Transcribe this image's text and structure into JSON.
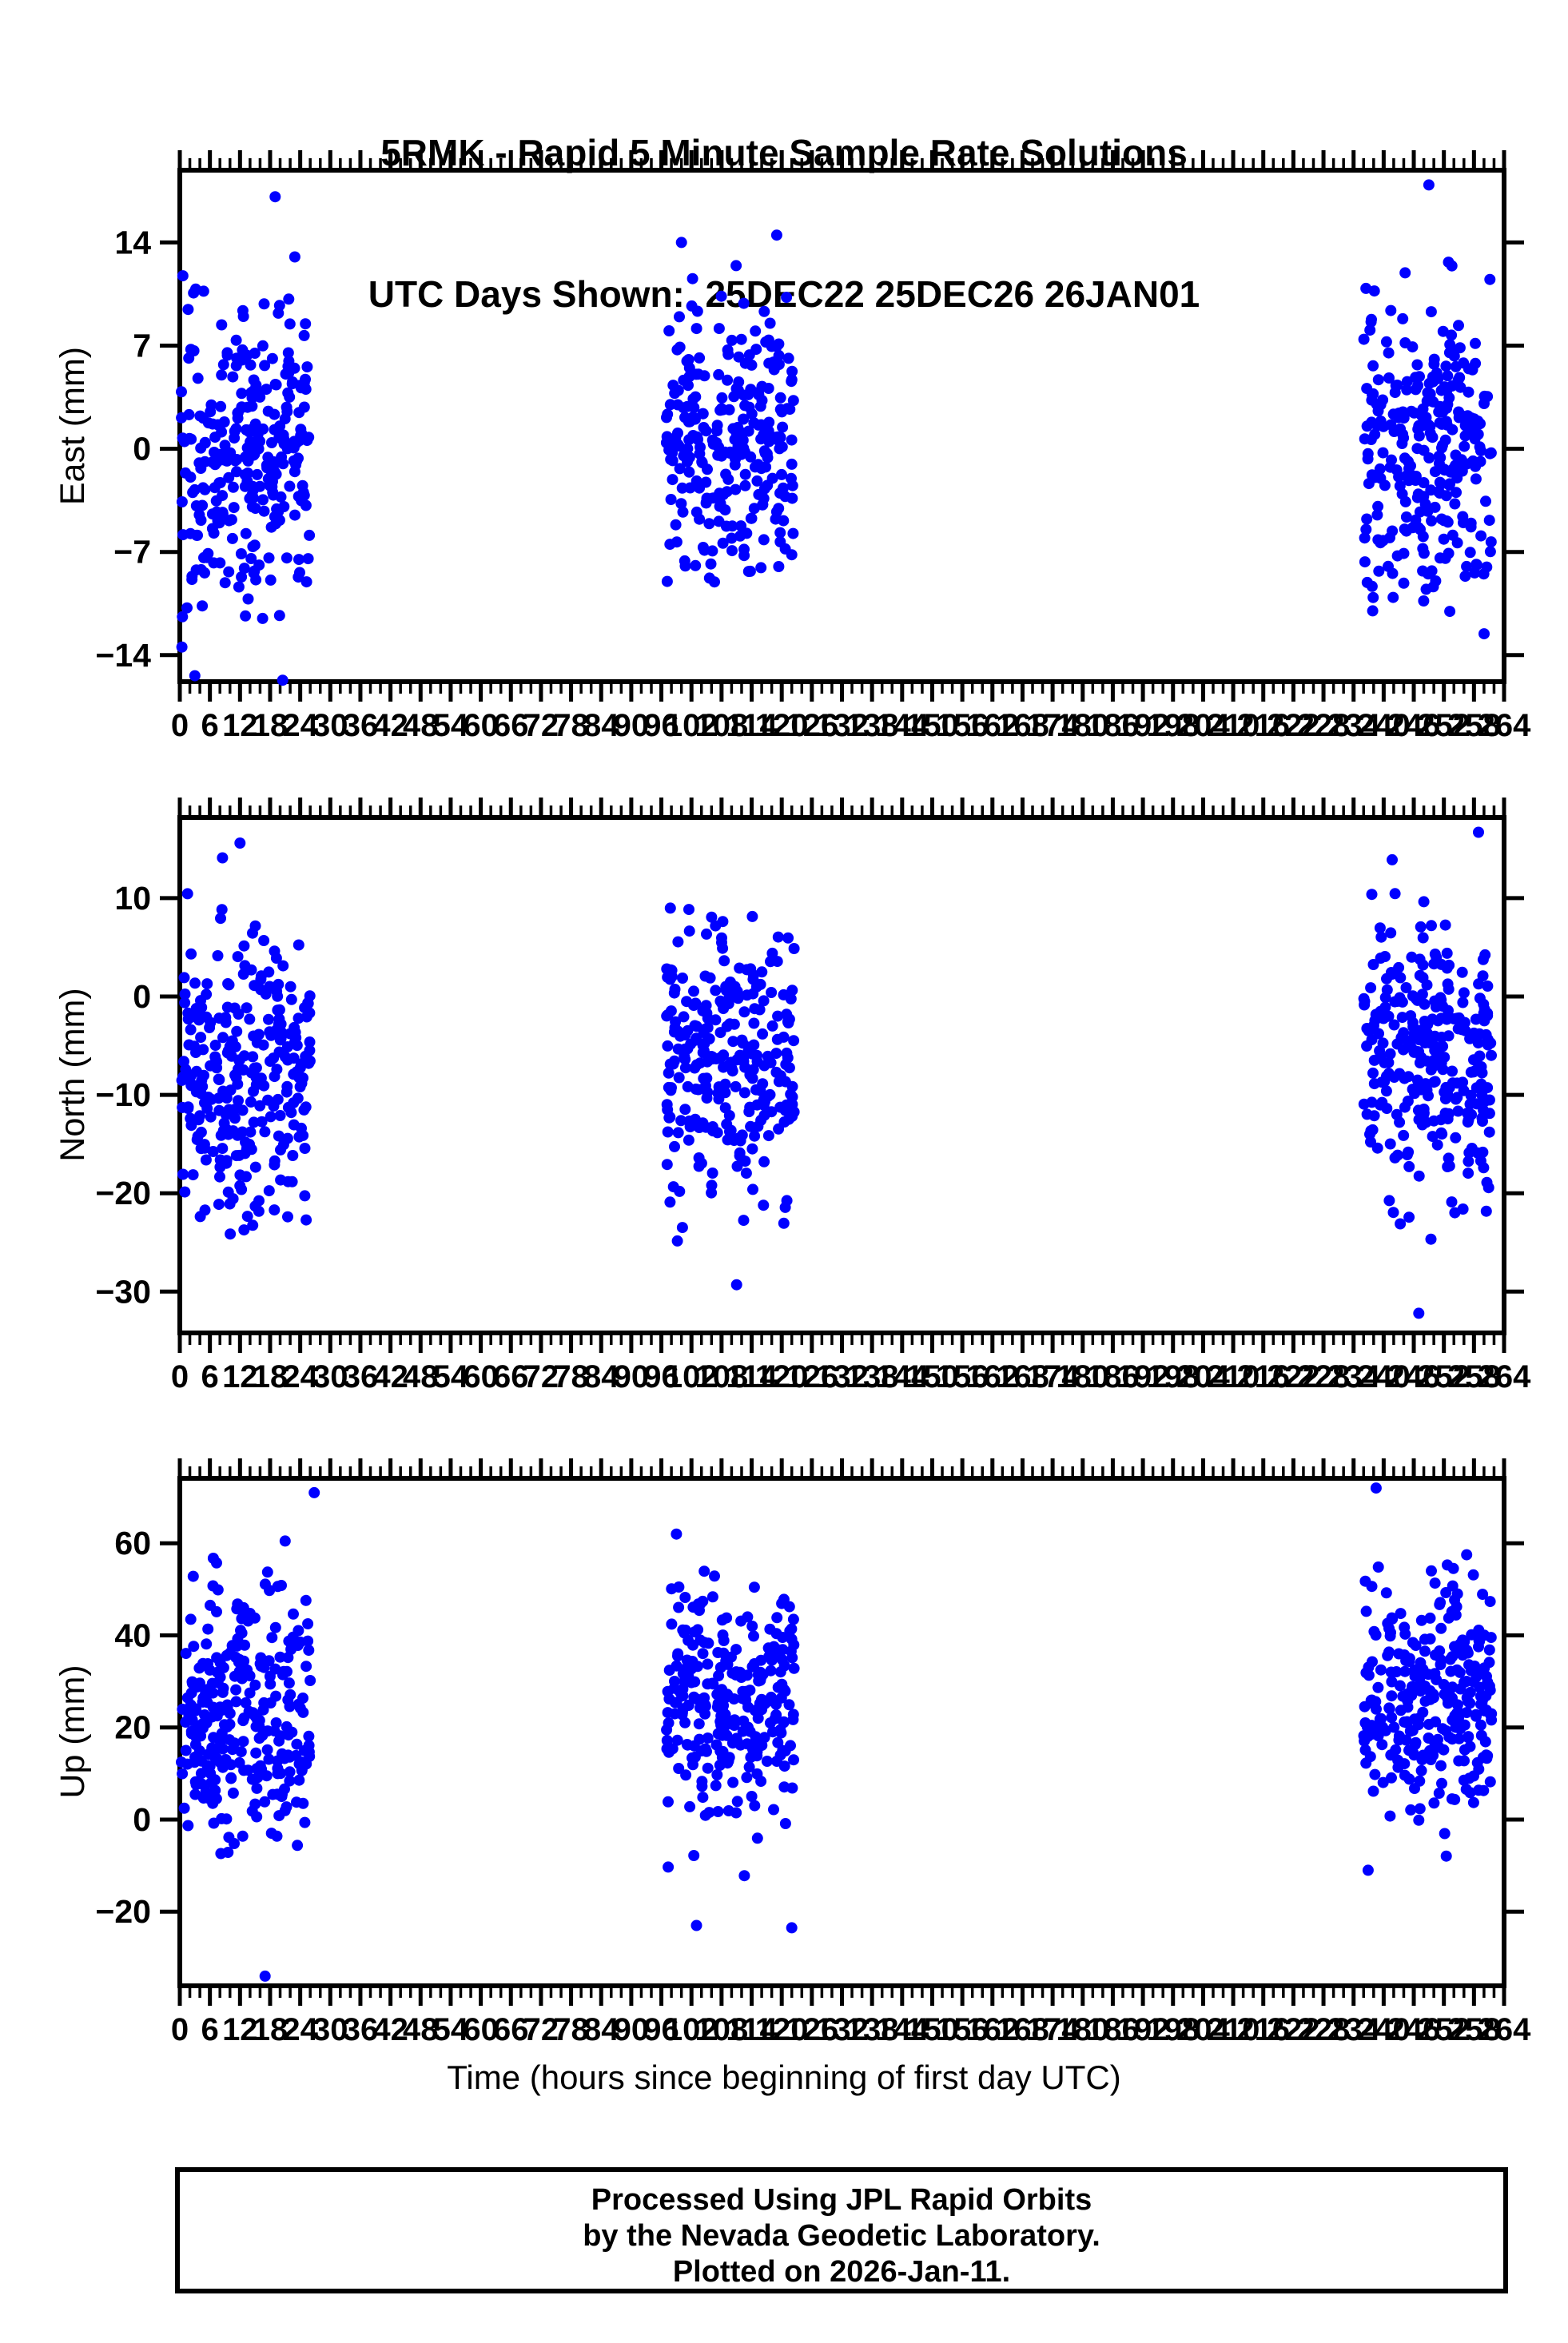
{
  "figure": {
    "title_line1": "5RMK - Rapid 5 Minute Sample Rate Solutions",
    "title_line2": "UTC Days Shown:  25DEC22 25DEC26 26JAN01",
    "xlabel": "Time (hours since beginning of first day UTC)",
    "footer_lines": [
      "Processed Using JPL Rapid Orbits",
      "by the Nevada Geodetic Laboratory.",
      "Plotted on 2026-Jan-11."
    ],
    "station": "5RMK",
    "utc_days_shown": [
      "25DEC22",
      "25DEC26",
      "26JAN01"
    ],
    "plotted_on": "2026-Jan-11",
    "point_color": "#0000ff",
    "axis_color": "#000000",
    "background": "#ffffff"
  },
  "chart_data": [
    {
      "type": "scatter",
      "ylabel": "East (mm)",
      "yticks": [
        14,
        7,
        0,
        -7,
        -14
      ],
      "ylim": [
        -15.8,
        18.9
      ],
      "xlim": [
        0,
        264
      ],
      "xtick_major_step": 6,
      "xtick_minor_step": 2,
      "xlabel_step": 6,
      "grid": false,
      "legend": "none",
      "marker": {
        "shape": "circle",
        "radius_px": 7
      },
      "seed": 7,
      "clusters": [
        {
          "x_range": [
            0.3,
            26.0
          ],
          "n": 290,
          "mean": -0.4,
          "std": 5.2,
          "clamp": [
            -15.6,
            13.4
          ]
        },
        {
          "x_range": [
            97.0,
            122.5
          ],
          "n": 272,
          "mean": 0.9,
          "std": 4.4,
          "clamp": [
            -9.6,
            12.6
          ]
        },
        {
          "x_range": [
            236.0,
            261.5
          ],
          "n": 280,
          "mean": -0.2,
          "std": 5.0,
          "clamp": [
            -12.6,
            12.8
          ]
        }
      ],
      "outliers": [
        [
          19,
          17.1
        ],
        [
          249,
          17.9
        ],
        [
          100,
          14.0
        ],
        [
          119,
          14.5
        ],
        [
          3,
          -15.4
        ],
        [
          20.5,
          -15.7
        ]
      ]
    },
    {
      "type": "scatter",
      "ylabel": "North (mm)",
      "yticks": [
        10,
        0,
        -10,
        -20,
        -30
      ],
      "ylim": [
        -34.2,
        18.2
      ],
      "xlim": [
        0,
        264
      ],
      "xtick_major_step": 6,
      "xtick_minor_step": 2,
      "xlabel_step": 6,
      "grid": false,
      "legend": "none",
      "marker": {
        "shape": "circle",
        "radius_px": 7
      },
      "seed": 13,
      "clusters": [
        {
          "x_range": [
            0.3,
            26.0
          ],
          "n": 285,
          "mean": -8.3,
          "std": 7.3,
          "clamp": [
            -26.3,
            11.8
          ]
        },
        {
          "x_range": [
            97.0,
            122.5
          ],
          "n": 272,
          "mean": -7.2,
          "std": 6.8,
          "clamp": [
            -25.8,
            9.4
          ]
        },
        {
          "x_range": [
            236.0,
            261.5
          ],
          "n": 278,
          "mean": -6.3,
          "std": 6.9,
          "clamp": [
            -25.5,
            11.5
          ]
        }
      ],
      "outliers": [
        [
          12,
          15.6
        ],
        [
          8.5,
          14.1
        ],
        [
          111,
          -29.3
        ],
        [
          247,
          -32.2
        ],
        [
          258.9,
          16.7
        ],
        [
          241.7,
          13.9
        ]
      ]
    },
    {
      "type": "scatter",
      "ylabel": "Up (mm)",
      "yticks": [
        60,
        40,
        20,
        0,
        -20
      ],
      "ylim": [
        -36.1,
        74.1
      ],
      "xlim": [
        0,
        264
      ],
      "xtick_major_step": 6,
      "xtick_minor_step": 2,
      "xlabel_step": 6,
      "grid": false,
      "legend": "none",
      "marker": {
        "shape": "circle",
        "radius_px": 7
      },
      "seed": 29,
      "clusters": [
        {
          "x_range": [
            0.3,
            26.0
          ],
          "n": 285,
          "mean": 24,
          "std": 13,
          "clamp": [
            -29,
            57
          ]
        },
        {
          "x_range": [
            97.0,
            122.5
          ],
          "n": 272,
          "mean": 26,
          "std": 12.5,
          "clamp": [
            -20.5,
            57.5
          ]
        },
        {
          "x_range": [
            236.0,
            261.5
          ],
          "n": 278,
          "mean": 26,
          "std": 12,
          "clamp": [
            -19.5,
            58.5
          ]
        }
      ],
      "outliers": [
        [
          26.8,
          71
        ],
        [
          17,
          -34
        ],
        [
          21,
          60.5
        ],
        [
          99,
          62
        ],
        [
          103,
          -23
        ],
        [
          122,
          -23.5
        ],
        [
          238.5,
          72
        ],
        [
          249.5,
          54
        ]
      ]
    }
  ]
}
